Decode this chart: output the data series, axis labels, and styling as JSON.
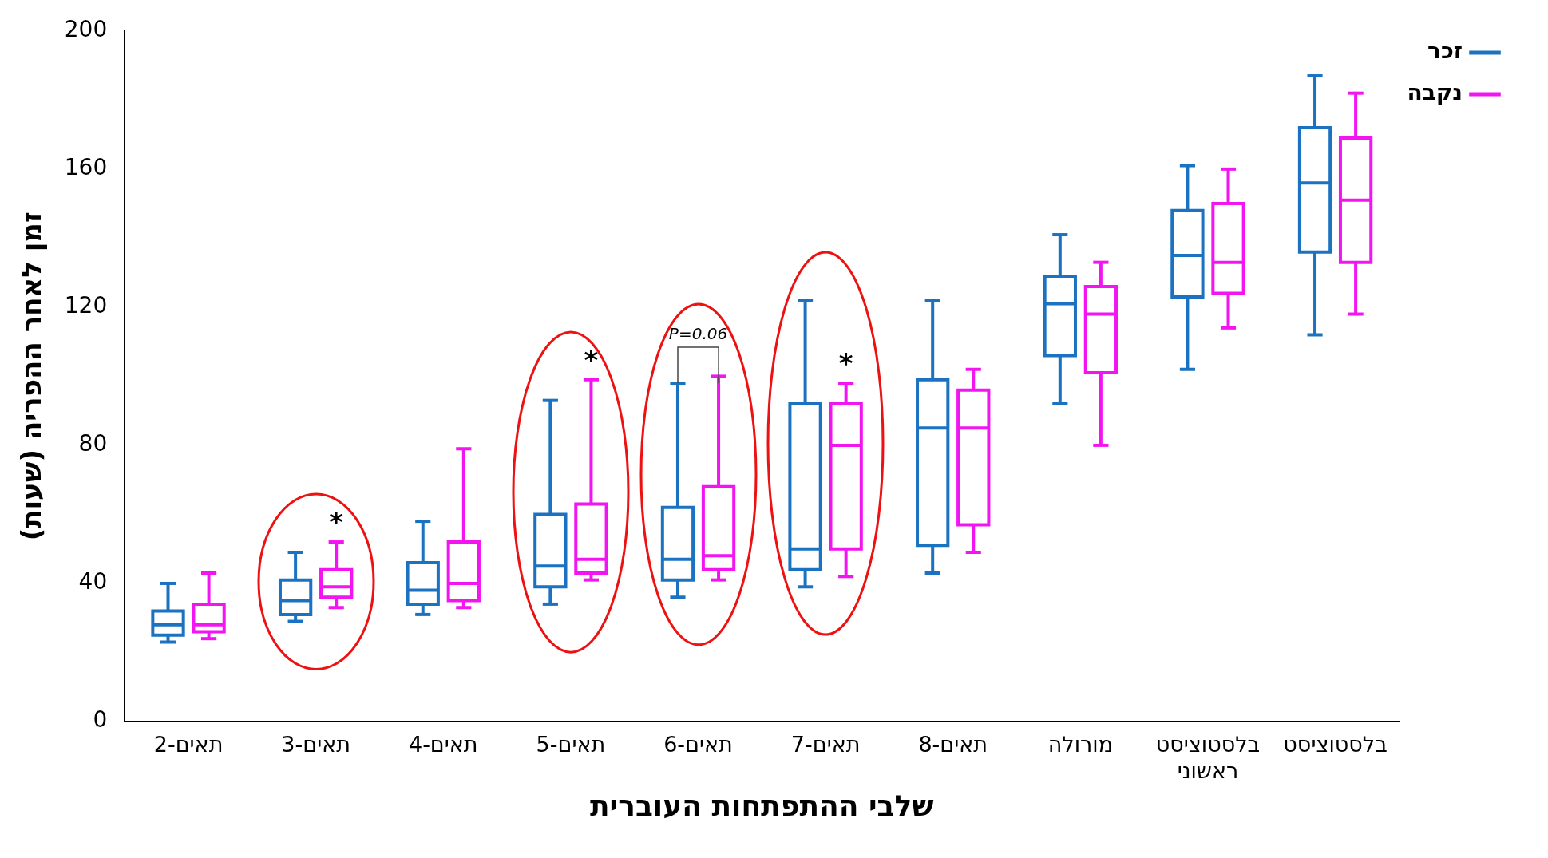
{
  "chart_data": {
    "type": "box",
    "xlabel": "שלבי ההתפתחות העוברית",
    "ylabel": "זמן לאחר ההפריה (שעות)",
    "categories": [
      "2-תאים",
      "3-תאים",
      "4-תאים",
      "5-תאים",
      "6-תאים",
      "7-תאים",
      "8-תאים",
      "מורולה",
      "בלסטוציסט ראשוני",
      "בלסטוציסט"
    ],
    "series": [
      {
        "name": "זכר",
        "color": "#1a72c0",
        "boxes": [
          {
            "low": 23,
            "q1": 25,
            "median": 28,
            "q3": 32,
            "high": 40
          },
          {
            "low": 29,
            "q1": 31,
            "median": 35,
            "q3": 41,
            "high": 49
          },
          {
            "low": 31,
            "q1": 34,
            "median": 38,
            "q3": 46,
            "high": 58
          },
          {
            "low": 34,
            "q1": 39,
            "median": 45,
            "q3": 60,
            "high": 93
          },
          {
            "low": 36,
            "q1": 41,
            "median": 47,
            "q3": 62,
            "high": 98
          },
          {
            "low": 39,
            "q1": 44,
            "median": 50,
            "q3": 92,
            "high": 122
          },
          {
            "low": 43,
            "q1": 51,
            "median": 85,
            "q3": 99,
            "high": 122
          },
          {
            "low": 92,
            "q1": 106,
            "median": 121,
            "q3": 129,
            "high": 141
          },
          {
            "low": 102,
            "q1": 123,
            "median": 135,
            "q3": 148,
            "high": 161
          },
          {
            "low": 112,
            "q1": 136,
            "median": 156,
            "q3": 172,
            "high": 187
          }
        ]
      },
      {
        "name": "נקבה",
        "color": "#f215f2",
        "boxes": [
          {
            "low": 24,
            "q1": 26,
            "median": 28,
            "q3": 34,
            "high": 43
          },
          {
            "low": 33,
            "q1": 36,
            "median": 39,
            "q3": 44,
            "high": 52
          },
          {
            "low": 33,
            "q1": 35,
            "median": 40,
            "q3": 52,
            "high": 79
          },
          {
            "low": 41,
            "q1": 43,
            "median": 47,
            "q3": 63,
            "high": 99
          },
          {
            "low": 41,
            "q1": 44,
            "median": 48,
            "q3": 68,
            "high": 100
          },
          {
            "low": 42,
            "q1": 50,
            "median": 80,
            "q3": 92,
            "high": 98
          },
          {
            "low": 49,
            "q1": 57,
            "median": 85,
            "q3": 96,
            "high": 102
          },
          {
            "low": 80,
            "q1": 101,
            "median": 118,
            "q3": 126,
            "high": 133
          },
          {
            "low": 114,
            "q1": 124,
            "median": 133,
            "q3": 150,
            "high": 160
          },
          {
            "low": 118,
            "q1": 133,
            "median": 151,
            "q3": 169,
            "high": 182
          }
        ]
      }
    ],
    "ylim": [
      0,
      200
    ],
    "yticks": [
      0,
      40,
      80,
      120,
      160,
      200
    ],
    "grid": false,
    "legend": "top right",
    "annotations": [
      "*",
      "*",
      "P=0.06",
      "*"
    ]
  }
}
